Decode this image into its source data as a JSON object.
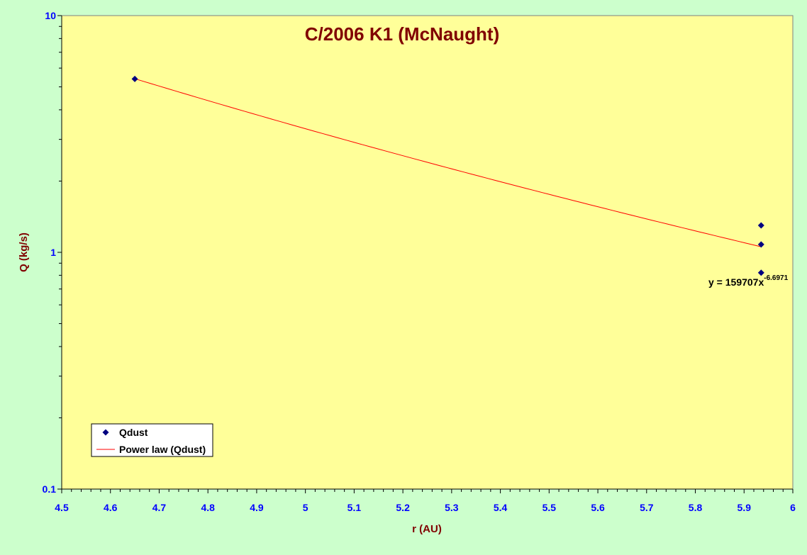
{
  "chart_data": {
    "type": "scatter",
    "title": "C/2006 K1 (McNaught)",
    "xlabel": "r (AU)",
    "ylabel": "Q (kg/s)",
    "xlim": [
      4.5,
      6
    ],
    "ylim": [
      0.1,
      10
    ],
    "yscale": "log",
    "x_ticks": [
      "4.5",
      "4.6",
      "4.7",
      "4.8",
      "4.9",
      "5",
      "5.1",
      "5.2",
      "5.3",
      "5.4",
      "5.5",
      "5.6",
      "5.7",
      "5.8",
      "5.9",
      "6"
    ],
    "y_ticks": [
      "10",
      "1",
      "0.1"
    ],
    "grid": false,
    "legend_position": "bottom-left",
    "series": [
      {
        "name": "Qdust",
        "kind": "scatter",
        "x": [
          4.65,
          5.935,
          5.935,
          5.935
        ],
        "y": [
          5.4,
          1.3,
          1.08,
          0.82
        ]
      },
      {
        "name": "Power law (Qdust)",
        "kind": "trendline",
        "equation": "y = 159707x",
        "exponent": "-6.6971",
        "coef": 159707,
        "power": -6.6971,
        "x_range": [
          4.65,
          5.935
        ]
      }
    ],
    "colors": {
      "plot_background": "#ffff99",
      "page_background": "#ccffcc",
      "marker": "#000080",
      "trendline": "#ff0000",
      "title": "#800000",
      "tick_labels": "#0000ff"
    }
  }
}
